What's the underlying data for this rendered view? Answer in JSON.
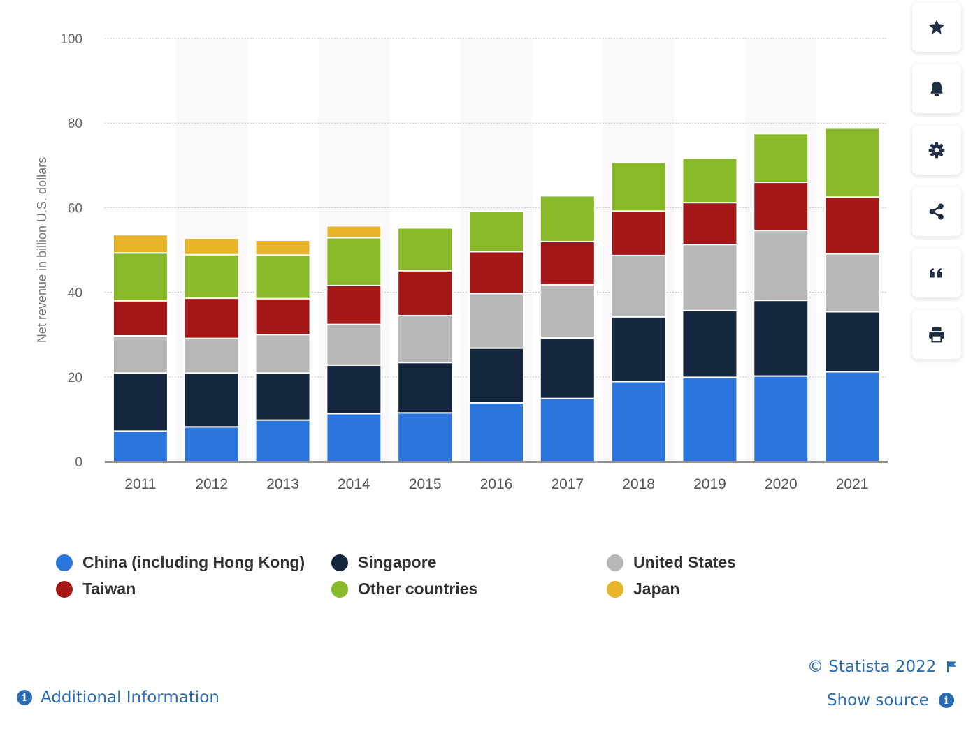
{
  "chart_data": {
    "type": "bar",
    "stacked": true,
    "title": "",
    "xlabel": "",
    "ylabel": "Net revenue in billion U.S. dollars",
    "ylim": [
      0,
      100
    ],
    "yticks": [
      0,
      20,
      40,
      60,
      80,
      100
    ],
    "grid": true,
    "legend_position": "bottom",
    "categories": [
      "2011",
      "2012",
      "2013",
      "2014",
      "2015",
      "2016",
      "2017",
      "2018",
      "2019",
      "2020",
      "2021"
    ],
    "series": [
      {
        "name": "China (including Hong Kong)",
        "color": "#2b76dc",
        "values": [
          7.2,
          8.2,
          9.8,
          11.3,
          11.5,
          13.9,
          14.9,
          18.9,
          19.9,
          20.2,
          21.2
        ]
      },
      {
        "name": "Singapore",
        "color": "#14253e",
        "values": [
          13.7,
          12.7,
          11.1,
          11.5,
          11.9,
          12.9,
          14.3,
          15.3,
          15.8,
          17.9,
          14.2
        ]
      },
      {
        "name": "United States",
        "color": "#b8b8b8",
        "values": [
          8.8,
          8.2,
          9.1,
          9.6,
          11.1,
          12.9,
          12.6,
          14.5,
          15.6,
          16.5,
          13.7
        ]
      },
      {
        "name": "Taiwan",
        "color": "#a31716",
        "values": [
          8.3,
          9.5,
          8.5,
          9.2,
          10.6,
          9.9,
          10.2,
          10.5,
          9.9,
          11.4,
          13.4
        ]
      },
      {
        "name": "Other countries",
        "color": "#87b928",
        "values": [
          11.3,
          10.3,
          10.3,
          11.3,
          10.1,
          9.5,
          10.8,
          11.5,
          10.5,
          11.5,
          16.3
        ]
      },
      {
        "name": "Japan",
        "color": "#e8b52a",
        "values": [
          4.3,
          3.9,
          3.5,
          2.8,
          0,
          0,
          0,
          0,
          0,
          0,
          0
        ]
      }
    ]
  },
  "legend": [
    {
      "label": "China (including Hong Kong)",
      "color": "#2b76dc"
    },
    {
      "label": "Singapore",
      "color": "#14253e"
    },
    {
      "label": "United States",
      "color": "#b8b8b8"
    },
    {
      "label": "Taiwan",
      "color": "#a31716"
    },
    {
      "label": "Other countries",
      "color": "#87b928"
    },
    {
      "label": "Japan",
      "color": "#e8b52a"
    }
  ],
  "toolbar": [
    {
      "name": "star-icon"
    },
    {
      "name": "bell-icon"
    },
    {
      "name": "gear-icon"
    },
    {
      "name": "share-icon"
    },
    {
      "name": "quote-icon"
    },
    {
      "name": "print-icon"
    }
  ],
  "footer": {
    "copyright": "© Statista 2022",
    "show_source": "Show source",
    "additional_info": "Additional Information",
    "link_color": "#2a6db3"
  }
}
